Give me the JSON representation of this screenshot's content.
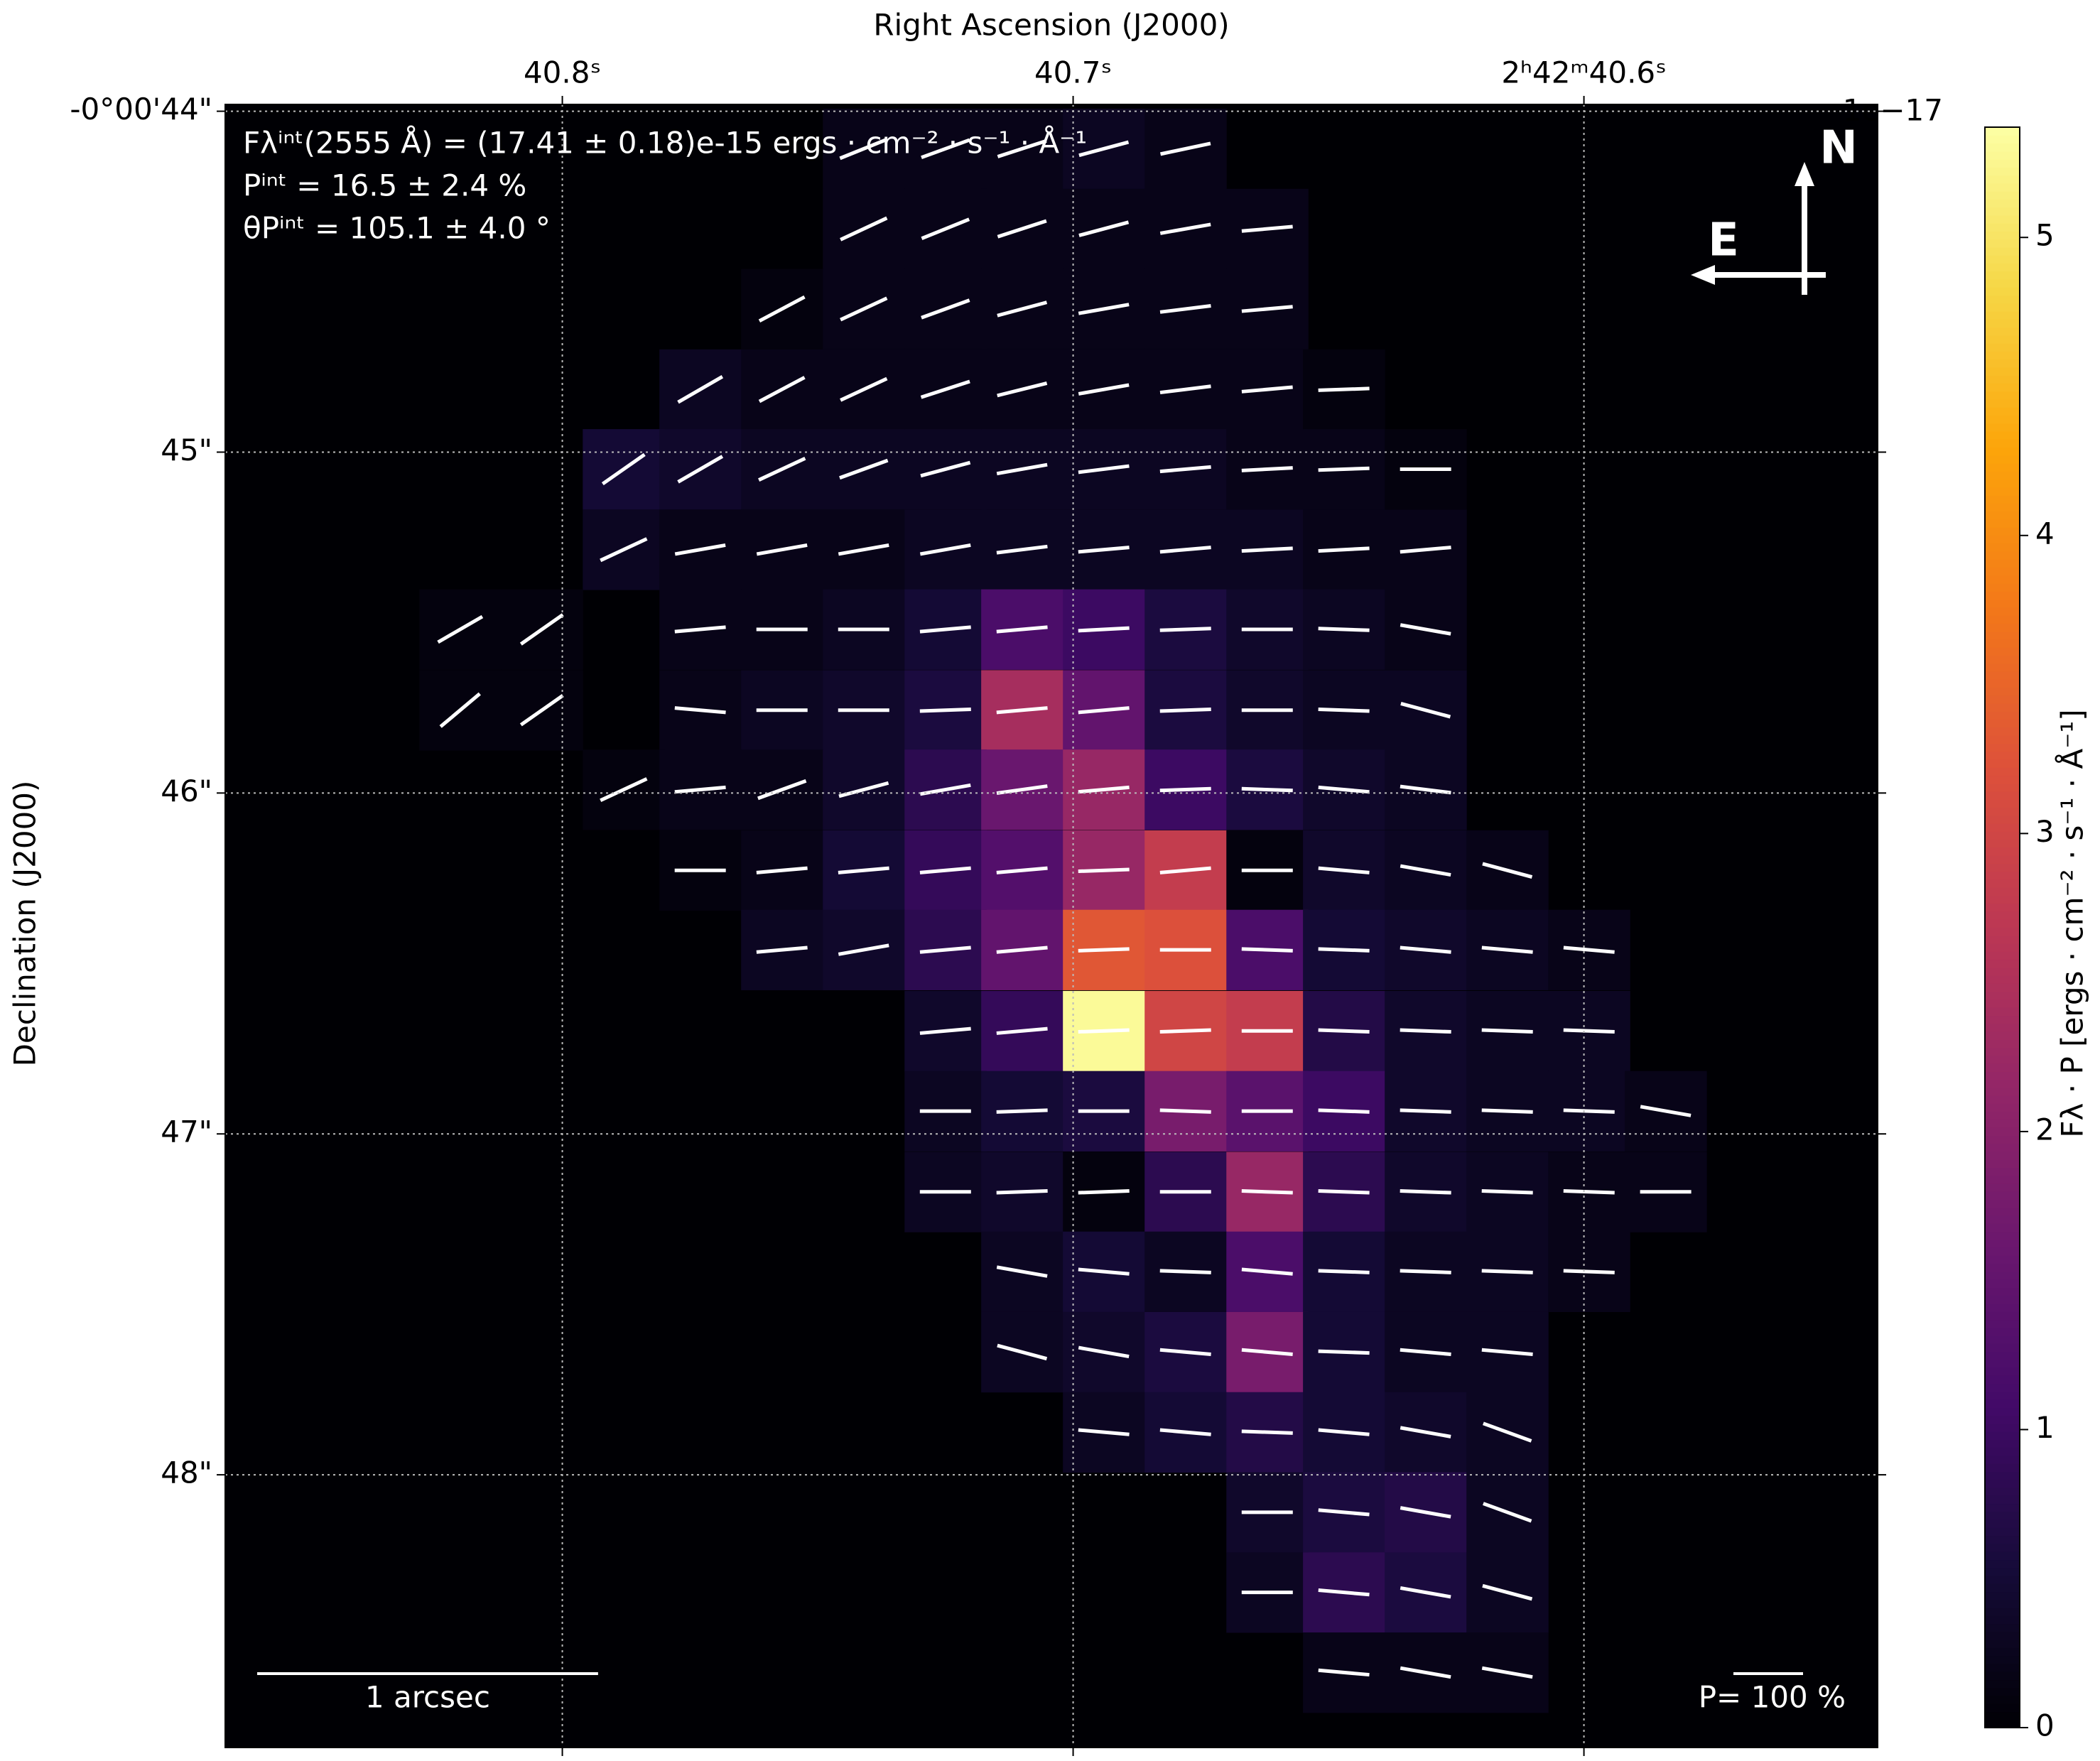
{
  "chart_data": {
    "type": "heatmap",
    "x_label": "Right Ascension (J2000)",
    "y_label": "Declination (J2000)",
    "xlim": [
      40.866,
      40.5425
    ],
    "ylim": [
      48.8,
      43.98
    ],
    "xticks": [
      {
        "value": 40.8,
        "label": "40.8ˢ"
      },
      {
        "value": 40.7,
        "label": "40.7ˢ"
      },
      {
        "value": 40.6,
        "label": "2ʰ42ᵐ40.6ˢ"
      }
    ],
    "yticks": [
      {
        "value": 44,
        "label": "-0°00'44\""
      },
      {
        "value": 45,
        "label": "45\""
      },
      {
        "value": 46,
        "label": "46\""
      },
      {
        "value": 47,
        "label": "47\""
      },
      {
        "value": 48,
        "label": "48\""
      }
    ],
    "grid": true,
    "colormap": "inferno",
    "clim": [
      0,
      5.37
    ],
    "colorbar_ticks": [
      0,
      1,
      2,
      3,
      4,
      5
    ],
    "colorbar_offset": "1e−17",
    "colorbar_label": "Fλ · P [ergs · cm⁻² · s⁻¹ · Å⁻¹]",
    "annotations": [
      "Fλⁱⁿᵗ(2555 Å) = (17.41 ± 0.18)e-15 ergs · cm⁻² · s⁻¹ · Å⁻¹",
      "Pⁱⁿᵗ = 16.5 ± 2.4 %",
      "θPⁱⁿᵗ = 105.1 ± 4.0 °"
    ],
    "scale_bar": "1 arcsec",
    "p_scale": "P= 100 %",
    "compass_n": "N",
    "compass_e": "E",
    "x": [
      40.82,
      40.804,
      40.788,
      40.773,
      40.757,
      40.741,
      40.725,
      40.71,
      40.694,
      40.678,
      40.662,
      40.647,
      40.631,
      40.615,
      40.599,
      40.584
    ],
    "y": [
      44.11,
      44.345,
      44.58,
      44.816,
      45.05,
      45.286,
      45.52,
      45.757,
      45.99,
      46.227,
      46.46,
      46.698,
      46.933,
      47.17,
      47.404,
      47.64,
      47.875,
      48.11,
      48.345,
      48.58
    ],
    "z": [
      [
        null,
        null,
        null,
        null,
        null,
        0.2,
        0.2,
        0.2,
        0.3,
        0.2,
        null,
        null,
        null,
        null,
        null,
        null
      ],
      [
        null,
        null,
        null,
        null,
        null,
        0.2,
        0.2,
        0.2,
        0.2,
        0.2,
        0.2,
        null,
        null,
        null,
        null,
        null
      ],
      [
        null,
        null,
        null,
        null,
        0.1,
        0.2,
        0.2,
        0.2,
        0.2,
        0.2,
        0.2,
        null,
        null,
        null,
        null,
        null
      ],
      [
        null,
        null,
        null,
        0.3,
        0.2,
        0.2,
        0.2,
        0.2,
        0.2,
        0.2,
        0.2,
        0.1,
        null,
        null,
        null,
        null
      ],
      [
        null,
        null,
        0.5,
        0.4,
        0.3,
        0.3,
        0.3,
        0.3,
        0.3,
        0.3,
        0.2,
        0.2,
        0.1,
        null,
        null,
        null
      ],
      [
        null,
        null,
        0.3,
        0.2,
        0.2,
        0.2,
        0.3,
        0.3,
        0.3,
        0.3,
        0.3,
        0.2,
        0.2,
        null,
        null,
        null
      ],
      [
        0.1,
        0.1,
        null,
        0.2,
        0.2,
        0.3,
        0.5,
        1.2,
        1.0,
        0.6,
        0.4,
        0.3,
        0.2,
        null,
        null,
        null
      ],
      [
        0.1,
        0.1,
        null,
        0.2,
        0.3,
        0.4,
        0.6,
        2.4,
        1.5,
        0.6,
        0.4,
        0.3,
        0.3,
        null,
        null,
        null
      ],
      [
        null,
        null,
        0.1,
        0.2,
        0.2,
        0.4,
        0.8,
        1.6,
        2.2,
        1.0,
        0.6,
        0.4,
        0.3,
        null,
        null,
        null
      ],
      [
        null,
        null,
        null,
        0.1,
        0.2,
        0.5,
        0.9,
        1.3,
        2.2,
        2.8,
        0.1,
        0.4,
        0.3,
        0.2,
        null,
        null
      ],
      [
        null,
        null,
        null,
        null,
        0.3,
        0.4,
        0.8,
        1.5,
        3.3,
        3.2,
        1.2,
        0.5,
        0.4,
        0.3,
        0.2,
        null
      ],
      [
        null,
        null,
        null,
        null,
        null,
        null,
        0.4,
        0.9,
        5.3,
        3.0,
        2.8,
        0.7,
        0.4,
        0.3,
        0.3,
        null
      ],
      [
        null,
        null,
        null,
        null,
        null,
        null,
        0.3,
        0.5,
        0.6,
        1.8,
        1.4,
        1.0,
        0.4,
        0.3,
        0.3,
        0.2
      ],
      [
        null,
        null,
        null,
        null,
        null,
        null,
        0.3,
        0.4,
        0.1,
        0.8,
        2.2,
        0.8,
        0.4,
        0.3,
        0.2,
        0.2
      ],
      [
        null,
        null,
        null,
        null,
        null,
        null,
        null,
        0.3,
        0.5,
        0.3,
        1.2,
        0.5,
        0.3,
        0.3,
        0.2,
        null
      ],
      [
        null,
        null,
        null,
        null,
        null,
        null,
        null,
        0.3,
        0.4,
        0.6,
        1.8,
        0.5,
        0.3,
        0.3,
        null,
        null
      ],
      [
        null,
        null,
        null,
        null,
        null,
        null,
        null,
        null,
        0.3,
        0.5,
        0.7,
        0.5,
        0.4,
        0.3,
        null,
        null
      ],
      [
        null,
        null,
        null,
        null,
        null,
        null,
        null,
        null,
        null,
        null,
        0.4,
        0.6,
        0.7,
        0.3,
        null,
        null
      ],
      [
        null,
        null,
        null,
        null,
        null,
        null,
        null,
        null,
        null,
        null,
        0.3,
        0.8,
        0.6,
        0.3,
        null,
        null
      ],
      [
        null,
        null,
        null,
        null,
        null,
        null,
        null,
        null,
        null,
        null,
        null,
        0.2,
        0.2,
        0.2,
        null,
        null
      ]
    ],
    "angles": [
      [
        null,
        null,
        null,
        null,
        null,
        112,
        110,
        108,
        105,
        102,
        null,
        null,
        null,
        null,
        null,
        null
      ],
      [
        null,
        null,
        null,
        null,
        null,
        115,
        112,
        108,
        105,
        100,
        95,
        null,
        null,
        null,
        null,
        null
      ],
      [
        null,
        null,
        null,
        null,
        118,
        115,
        110,
        105,
        100,
        97,
        95,
        null,
        null,
        null,
        null,
        null
      ],
      [
        null,
        null,
        null,
        120,
        118,
        115,
        108,
        104,
        100,
        97,
        95,
        92,
        null,
        null,
        null,
        null
      ],
      [
        null,
        null,
        125,
        120,
        115,
        110,
        105,
        100,
        97,
        95,
        93,
        92,
        90,
        null,
        null,
        null
      ],
      [
        null,
        null,
        115,
        100,
        100,
        100,
        100,
        97,
        95,
        95,
        93,
        93,
        95,
        null,
        null,
        null
      ],
      [
        120,
        125,
        null,
        95,
        90,
        90,
        95,
        95,
        93,
        92,
        90,
        88,
        80,
        null,
        null,
        null
      ],
      [
        130,
        125,
        null,
        85,
        90,
        90,
        92,
        95,
        95,
        92,
        90,
        88,
        75,
        null,
        null,
        null
      ],
      [
        null,
        null,
        115,
        95,
        110,
        105,
        100,
        98,
        95,
        92,
        88,
        85,
        83,
        null,
        null,
        null
      ],
      [
        null,
        null,
        null,
        90,
        95,
        95,
        95,
        95,
        92,
        95,
        90,
        85,
        80,
        75,
        null,
        null
      ],
      [
        null,
        null,
        null,
        null,
        95,
        100,
        95,
        95,
        92,
        90,
        88,
        88,
        85,
        85,
        85,
        null
      ],
      [
        null,
        null,
        null,
        null,
        null,
        null,
        95,
        95,
        92,
        92,
        90,
        88,
        88,
        88,
        88,
        null
      ],
      [
        null,
        null,
        null,
        null,
        null,
        null,
        90,
        92,
        90,
        88,
        90,
        88,
        88,
        88,
        88,
        80
      ],
      [
        null,
        null,
        null,
        null,
        null,
        null,
        90,
        92,
        92,
        90,
        88,
        88,
        88,
        88,
        88,
        90
      ],
      [
        null,
        null,
        null,
        null,
        null,
        null,
        null,
        80,
        85,
        88,
        85,
        88,
        88,
        88,
        88,
        null
      ],
      [
        null,
        null,
        null,
        null,
        null,
        null,
        null,
        75,
        80,
        85,
        85,
        88,
        85,
        85,
        null,
        null
      ],
      [
        null,
        null,
        null,
        null,
        null,
        null,
        null,
        null,
        85,
        85,
        88,
        85,
        80,
        70,
        null,
        null
      ],
      [
        null,
        null,
        null,
        null,
        null,
        null,
        null,
        null,
        null,
        null,
        90,
        85,
        80,
        70,
        null,
        null
      ],
      [
        null,
        null,
        null,
        null,
        null,
        null,
        null,
        null,
        null,
        null,
        90,
        85,
        80,
        75,
        null,
        null
      ],
      [
        null,
        null,
        null,
        null,
        null,
        null,
        null,
        null,
        null,
        null,
        null,
        85,
        80,
        80,
        null,
        null
      ]
    ]
  }
}
